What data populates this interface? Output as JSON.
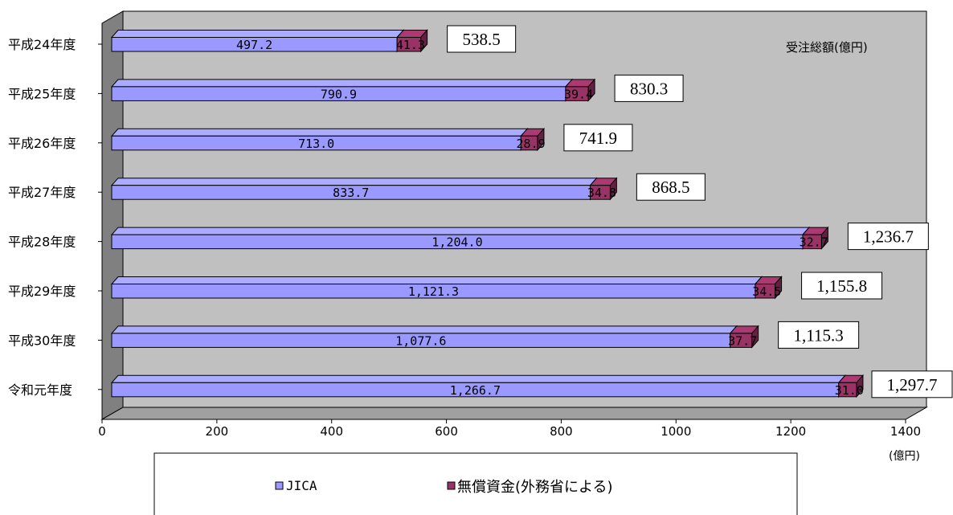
{
  "chart_data": {
    "type": "bar",
    "orientation": "horizontal",
    "stacked": true,
    "three_d": true,
    "categories": [
      "平成24年度",
      "平成25年度",
      "平成26年度",
      "平成27年度",
      "平成28年度",
      "平成29年度",
      "平成30年度",
      "令和元年度"
    ],
    "series": [
      {
        "name": "JICA",
        "values": [
          497.2,
          790.9,
          713.0,
          833.7,
          1204.0,
          1121.3,
          1077.6,
          1266.7
        ],
        "labels": [
          "497.2",
          "790.9",
          "713.0",
          "833.7",
          "1,204.0",
          "1,121.3",
          "1,077.6",
          "1,266.7"
        ],
        "color": "#9999ff"
      },
      {
        "name": "無償資金(外務省による)",
        "values": [
          41.3,
          39.4,
          28.9,
          34.8,
          32.7,
          34.5,
          37.7,
          31.0
        ],
        "labels": [
          "41.3",
          "39.4",
          "28.9",
          "34.8",
          "32.7",
          "34.5",
          "37.7",
          "31.0"
        ],
        "color": "#993366"
      }
    ],
    "totals": [
      "538.5",
      "830.3",
      "741.9",
      "868.5",
      "1,236.7",
      "1,155.8",
      "1,115.3",
      "1,297.7"
    ],
    "total_values": [
      538.5,
      830.3,
      741.9,
      868.5,
      1236.7,
      1155.8,
      1115.3,
      1297.7
    ],
    "xlim": [
      0,
      1400
    ],
    "xticks": [
      0,
      200,
      400,
      600,
      800,
      1000,
      1200,
      1400
    ],
    "xtick_labels": [
      "0",
      "200",
      "400",
      "600",
      "800",
      "1000",
      "1200",
      "1400"
    ],
    "xlabel": "(億円)",
    "annotation": "受注総額(億円)",
    "title": "",
    "grid": false,
    "legend": "bottom",
    "wall_color": "#c0c0c0"
  }
}
